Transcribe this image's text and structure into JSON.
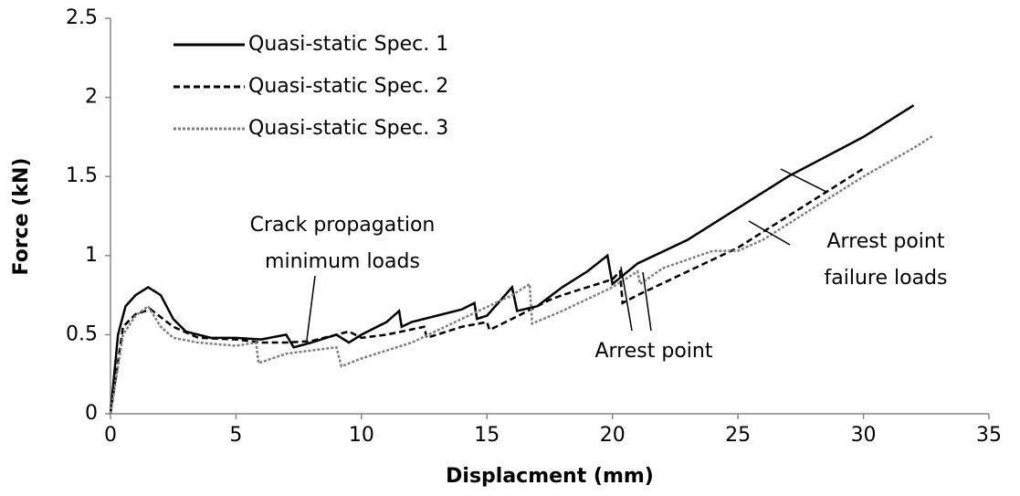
{
  "chart_data": {
    "type": "line",
    "xlabel": "Displacment (mm)",
    "ylabel": "Force (kN)",
    "xlim": [
      0,
      35
    ],
    "xticks": [
      0,
      5,
      10,
      15,
      20,
      25,
      30,
      35
    ],
    "ylim": [
      0,
      2.5
    ],
    "yticks": [
      0,
      0.5,
      1,
      1.5,
      2,
      2.5
    ],
    "legend": "upper left",
    "series": [
      {
        "name": "Quasi-static Spec. 1",
        "color": "#000000",
        "linestyle": "solid",
        "x": [
          0,
          0.3,
          0.6,
          1,
          1.5,
          2,
          2.5,
          3,
          4,
          5,
          6,
          7,
          7.3,
          8,
          9,
          9.5,
          10,
          11,
          11.5,
          11.6,
          12,
          13,
          14,
          14.5,
          14.6,
          15,
          16,
          16.2,
          17,
          18,
          19,
          19.8,
          20,
          21,
          23,
          25,
          27,
          30,
          32
        ],
        "values": [
          0,
          0.5,
          0.68,
          0.75,
          0.8,
          0.75,
          0.6,
          0.52,
          0.48,
          0.48,
          0.47,
          0.5,
          0.42,
          0.45,
          0.5,
          0.45,
          0.5,
          0.58,
          0.65,
          0.55,
          0.58,
          0.62,
          0.66,
          0.7,
          0.6,
          0.62,
          0.8,
          0.65,
          0.68,
          0.8,
          0.9,
          1.0,
          0.82,
          0.95,
          1.1,
          1.3,
          1.5,
          1.75,
          1.95
        ]
      },
      {
        "name": "Quasi-static Spec. 2",
        "color": "#000000",
        "linestyle": "dashed",
        "x": [
          0,
          0.5,
          1,
          1.6,
          2.5,
          3.5,
          5,
          6,
          7,
          8,
          9.5,
          10,
          11,
          12.5,
          12.6,
          14,
          15,
          15.1,
          16,
          17,
          17.5,
          18,
          19,
          20,
          20.3,
          20.4,
          21,
          23,
          25,
          27,
          30
        ],
        "values": [
          0,
          0.55,
          0.63,
          0.66,
          0.55,
          0.48,
          0.47,
          0.45,
          0.45,
          0.46,
          0.52,
          0.48,
          0.5,
          0.55,
          0.48,
          0.55,
          0.58,
          0.53,
          0.6,
          0.68,
          0.72,
          0.75,
          0.8,
          0.85,
          0.9,
          0.7,
          0.75,
          0.9,
          1.05,
          1.25,
          1.55
        ]
      },
      {
        "name": "Quasi-static Spec. 3",
        "color": "#7f7f7f",
        "linestyle": "dotted",
        "x": [
          0,
          0.5,
          1,
          1.5,
          2,
          2.5,
          3.5,
          5,
          5.8,
          5.9,
          7,
          8,
          9,
          9.2,
          10,
          12,
          14,
          16,
          16.7,
          16.8,
          18,
          20,
          21,
          21.1,
          22,
          24,
          25,
          26,
          28,
          30,
          32,
          32.8
        ],
        "values": [
          0,
          0.5,
          0.62,
          0.68,
          0.55,
          0.48,
          0.45,
          0.43,
          0.45,
          0.32,
          0.38,
          0.4,
          0.42,
          0.3,
          0.35,
          0.45,
          0.6,
          0.75,
          0.82,
          0.57,
          0.65,
          0.8,
          0.9,
          0.82,
          0.92,
          1.03,
          1.03,
          1.1,
          1.3,
          1.5,
          1.68,
          1.76
        ]
      }
    ],
    "annotations": [
      [
        "Crack propagation",
        "minimum loads"
      ],
      [
        "Arrest point"
      ],
      [
        "Arrest point",
        "failure loads"
      ]
    ]
  }
}
